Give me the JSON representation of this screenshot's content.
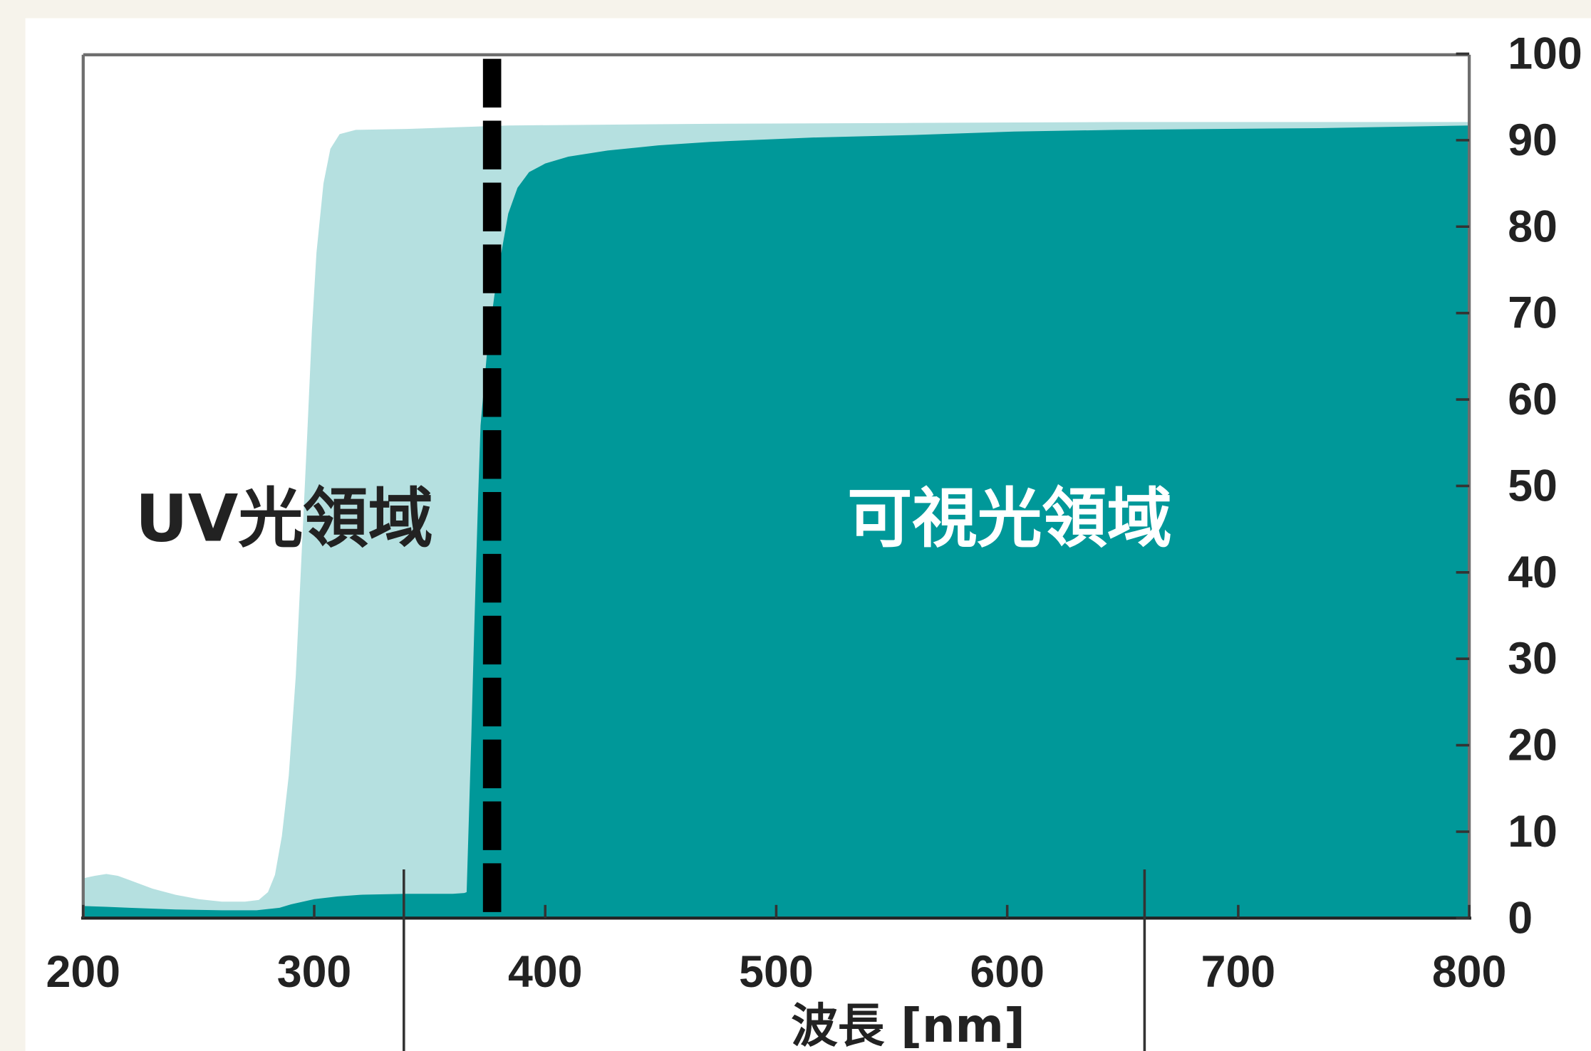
{
  "chart_data": {
    "type": "area",
    "xlabel": "波長 [nm]",
    "xlim": [
      200,
      800
    ],
    "ylim": [
      0,
      100
    ],
    "x_ticks": [
      200,
      300,
      400,
      500,
      600,
      700,
      800
    ],
    "y_ticks": [
      0,
      10,
      20,
      30,
      40,
      50,
      60,
      70,
      80,
      90,
      100
    ],
    "y_axis_position": "right",
    "grid": false,
    "legend": "none",
    "series": [
      {
        "color": "#b5e0e0",
        "x": [
          200,
          205,
          210,
          215,
          220,
          230,
          240,
          250,
          260,
          270,
          276,
          280,
          283,
          286,
          289,
          292,
          294,
          297,
          299,
          301,
          304,
          307,
          311,
          318,
          340,
          384,
          471,
          559,
          647,
          735,
          800
        ],
        "y": [
          4.6,
          4.9,
          5.1,
          4.9,
          4.4,
          3.4,
          2.7,
          2.2,
          1.9,
          1.9,
          2.1,
          3.0,
          5.0,
          9.5,
          16.5,
          28,
          39,
          56,
          68,
          77,
          85,
          89,
          90.7,
          91.2,
          91.3,
          91.7,
          91.9,
          92.0,
          92.1,
          92.1,
          92.1
        ]
      },
      {
        "color": "#009899",
        "x": [
          200,
          210,
          220,
          240,
          260,
          275,
          285,
          290,
          300,
          310,
          320,
          340,
          360,
          365,
          366,
          367,
          368,
          369,
          370,
          371,
          372,
          375,
          378,
          381,
          384,
          388,
          393,
          400,
          410,
          427,
          449,
          471,
          515,
          559,
          603,
          647,
          691,
          735,
          800
        ],
        "y": [
          1.4,
          1.3,
          1.2,
          1.0,
          0.9,
          0.9,
          1.2,
          1.6,
          2.2,
          2.5,
          2.7,
          2.8,
          2.8,
          2.9,
          3.0,
          12,
          21,
          31,
          40,
          49,
          57,
          66,
          72,
          77,
          81.5,
          84.5,
          86.3,
          87.3,
          88.1,
          88.8,
          89.4,
          89.8,
          90.3,
          90.6,
          91.0,
          91.2,
          91.3,
          91.4,
          91.7
        ]
      }
    ],
    "reference_lines": [
      {
        "x": 377,
        "style": "dashed",
        "color": "#000000"
      }
    ],
    "region_labels": {
      "uv": "UV光領域",
      "visible": "可視光領域"
    }
  },
  "colors": {
    "page_background": "#f6f3eb",
    "card_background": "#ffffff",
    "frame": "#6e6e6e",
    "axis_line": "#222222",
    "axis_text": "#222222",
    "uv_label_text": "#222222",
    "visible_label_text": "#ffffff"
  }
}
